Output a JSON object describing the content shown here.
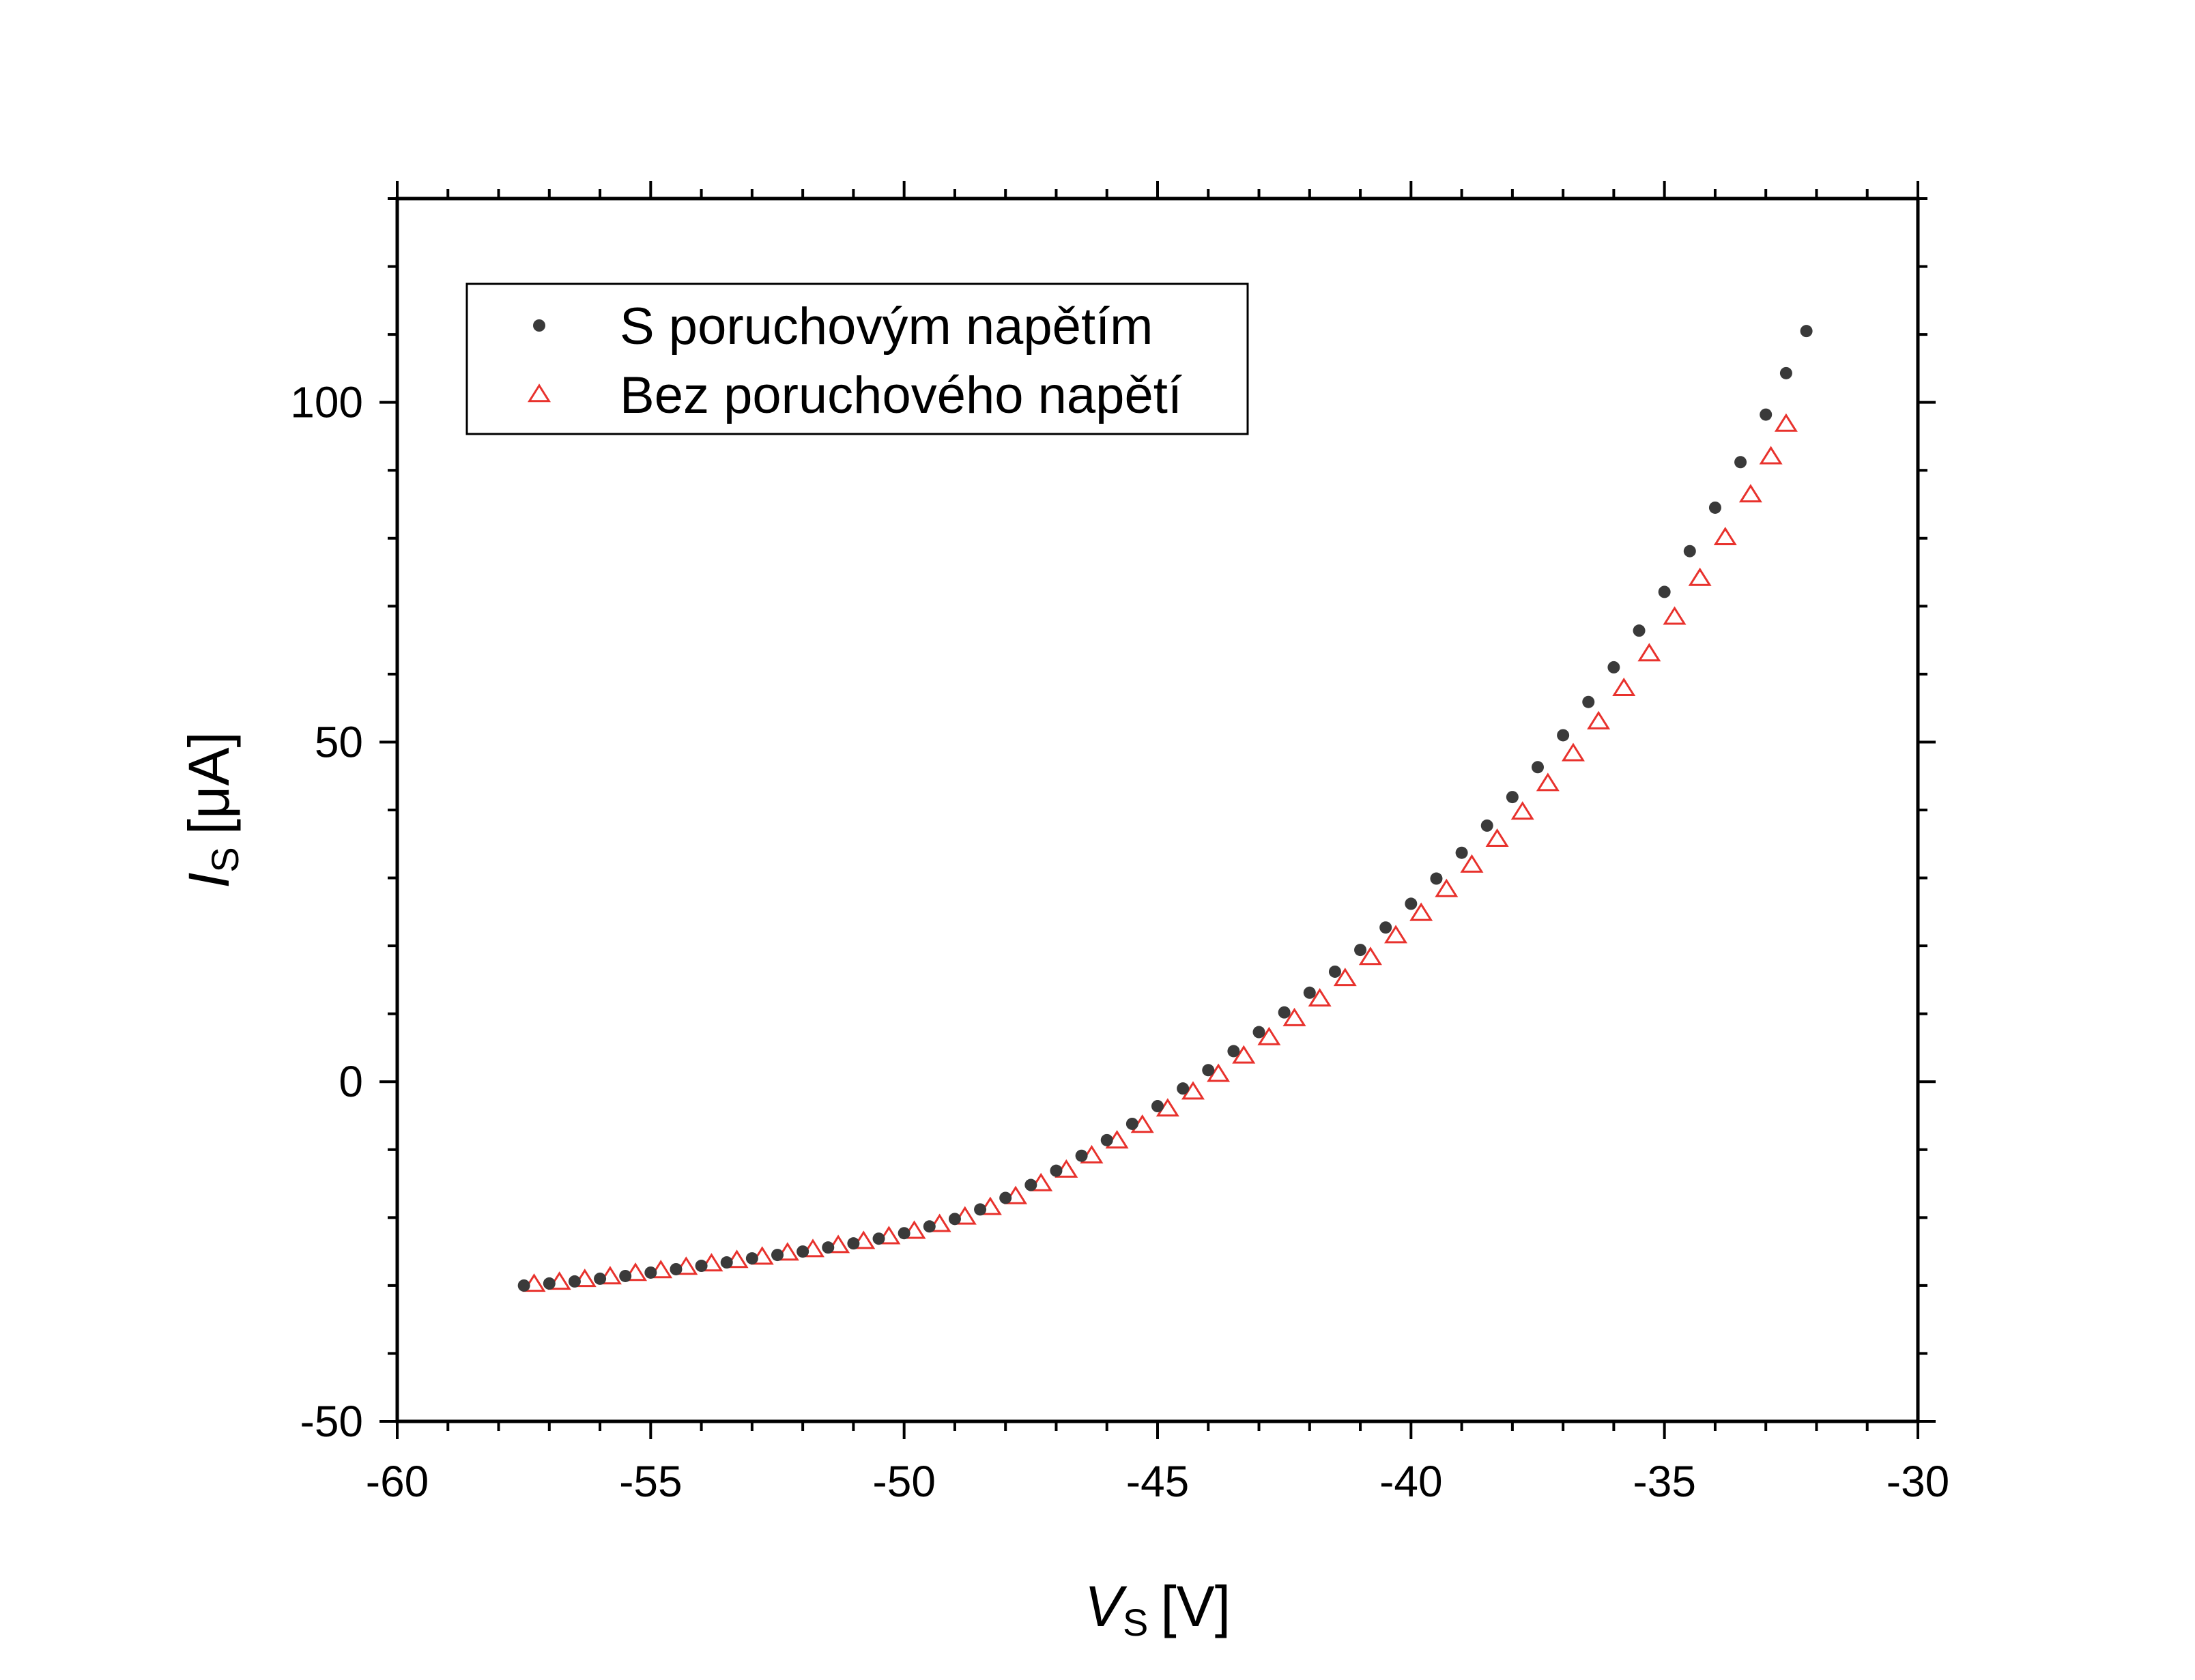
{
  "chart_data": {
    "type": "scatter",
    "title": "",
    "xlabel": {
      "symbol": "V",
      "subscript": "S",
      "unit": "[V]"
    },
    "ylabel": {
      "symbol": "I",
      "subscript": "S",
      "unit": "[μA]"
    },
    "xlim": [
      -60,
      -30
    ],
    "ylim": [
      -50,
      130
    ],
    "x_ticks": [
      -60,
      -55,
      -50,
      -45,
      -40,
      -35,
      -30
    ],
    "x_tick_labels": [
      "-60",
      "-55",
      "-50",
      "-45",
      "-40",
      "-35",
      "-30"
    ],
    "y_ticks": [
      -50,
      0,
      50,
      100
    ],
    "y_tick_labels": [
      "-50",
      "0",
      "50",
      "100"
    ],
    "grid": false,
    "legend_position": "top-left",
    "series": [
      {
        "name": "S poruchovým napětím",
        "marker": "dot",
        "color": "#3a3a3a",
        "points": [
          [
            -57.5,
            -30.0
          ],
          [
            -57.0,
            -29.7
          ],
          [
            -56.5,
            -29.4
          ],
          [
            -56.0,
            -29.0
          ],
          [
            -55.5,
            -28.6
          ],
          [
            -55.0,
            -28.1
          ],
          [
            -54.5,
            -27.6
          ],
          [
            -54.0,
            -27.1
          ],
          [
            -53.5,
            -26.6
          ],
          [
            -53.0,
            -26.0
          ],
          [
            -52.5,
            -25.5
          ],
          [
            -52.0,
            -25.0
          ],
          [
            -51.5,
            -24.4
          ],
          [
            -51.0,
            -23.8
          ],
          [
            -50.5,
            -23.1
          ],
          [
            -50.0,
            -22.3
          ],
          [
            -49.5,
            -21.3
          ],
          [
            -49.0,
            -20.2
          ],
          [
            -48.5,
            -18.8
          ],
          [
            -48.0,
            -17.1
          ],
          [
            -47.5,
            -15.2
          ],
          [
            -47.0,
            -13.1
          ],
          [
            -46.5,
            -10.9
          ],
          [
            -46.0,
            -8.6
          ],
          [
            -45.5,
            -6.2
          ],
          [
            -45.0,
            -3.6
          ],
          [
            -44.5,
            -1.0
          ],
          [
            -44.0,
            1.7
          ],
          [
            -43.5,
            4.5
          ],
          [
            -43.0,
            7.3
          ],
          [
            -42.5,
            10.2
          ],
          [
            -42.0,
            13.1
          ],
          [
            -41.5,
            16.2
          ],
          [
            -41.0,
            19.4
          ],
          [
            -40.5,
            22.7
          ],
          [
            -40.0,
            26.2
          ],
          [
            -39.5,
            29.9
          ],
          [
            -39.0,
            33.7
          ],
          [
            -38.5,
            37.7
          ],
          [
            -38.0,
            41.9
          ],
          [
            -37.5,
            46.3
          ],
          [
            -37.0,
            51.0
          ],
          [
            -36.5,
            55.9
          ],
          [
            -36.0,
            61.0
          ],
          [
            -35.5,
            66.4
          ],
          [
            -35.0,
            72.1
          ],
          [
            -34.5,
            78.1
          ],
          [
            -34.0,
            84.5
          ],
          [
            -33.5,
            91.2
          ],
          [
            -33.0,
            98.2
          ],
          [
            -32.6,
            104.3
          ],
          [
            -32.2,
            110.5
          ]
        ]
      },
      {
        "name": "Bez poruchového napětí",
        "marker": "triangle-open",
        "color": "#e8322d",
        "points": [
          [
            -57.3,
            -29.8
          ],
          [
            -56.8,
            -29.5
          ],
          [
            -56.3,
            -29.1
          ],
          [
            -55.8,
            -28.7
          ],
          [
            -55.3,
            -28.2
          ],
          [
            -54.8,
            -27.8
          ],
          [
            -54.3,
            -27.3
          ],
          [
            -53.8,
            -26.8
          ],
          [
            -53.3,
            -26.3
          ],
          [
            -52.8,
            -25.8
          ],
          [
            -52.3,
            -25.2
          ],
          [
            -51.8,
            -24.7
          ],
          [
            -51.3,
            -24.1
          ],
          [
            -50.8,
            -23.5
          ],
          [
            -50.3,
            -22.8
          ],
          [
            -49.8,
            -22.0
          ],
          [
            -49.3,
            -21.0
          ],
          [
            -48.8,
            -19.9
          ],
          [
            -48.3,
            -18.5
          ],
          [
            -47.8,
            -16.9
          ],
          [
            -47.3,
            -15.0
          ],
          [
            -46.8,
            -13.0
          ],
          [
            -46.3,
            -10.9
          ],
          [
            -45.8,
            -8.7
          ],
          [
            -45.3,
            -6.4
          ],
          [
            -44.8,
            -4.0
          ],
          [
            -44.3,
            -1.5
          ],
          [
            -43.8,
            1.1
          ],
          [
            -43.3,
            3.8
          ],
          [
            -42.8,
            6.5
          ],
          [
            -42.3,
            9.3
          ],
          [
            -41.8,
            12.2
          ],
          [
            -41.3,
            15.2
          ],
          [
            -40.8,
            18.3
          ],
          [
            -40.3,
            21.5
          ],
          [
            -39.8,
            24.8
          ],
          [
            -39.3,
            28.3
          ],
          [
            -38.8,
            31.9
          ],
          [
            -38.3,
            35.7
          ],
          [
            -37.8,
            39.7
          ],
          [
            -37.3,
            43.9
          ],
          [
            -36.8,
            48.3
          ],
          [
            -36.3,
            53.0
          ],
          [
            -35.8,
            57.9
          ],
          [
            -35.3,
            63.0
          ],
          [
            -34.8,
            68.4
          ],
          [
            -34.3,
            74.1
          ],
          [
            -33.8,
            80.1
          ],
          [
            -33.3,
            86.4
          ],
          [
            -32.9,
            92.0
          ],
          [
            -32.6,
            96.8
          ]
        ]
      }
    ]
  }
}
